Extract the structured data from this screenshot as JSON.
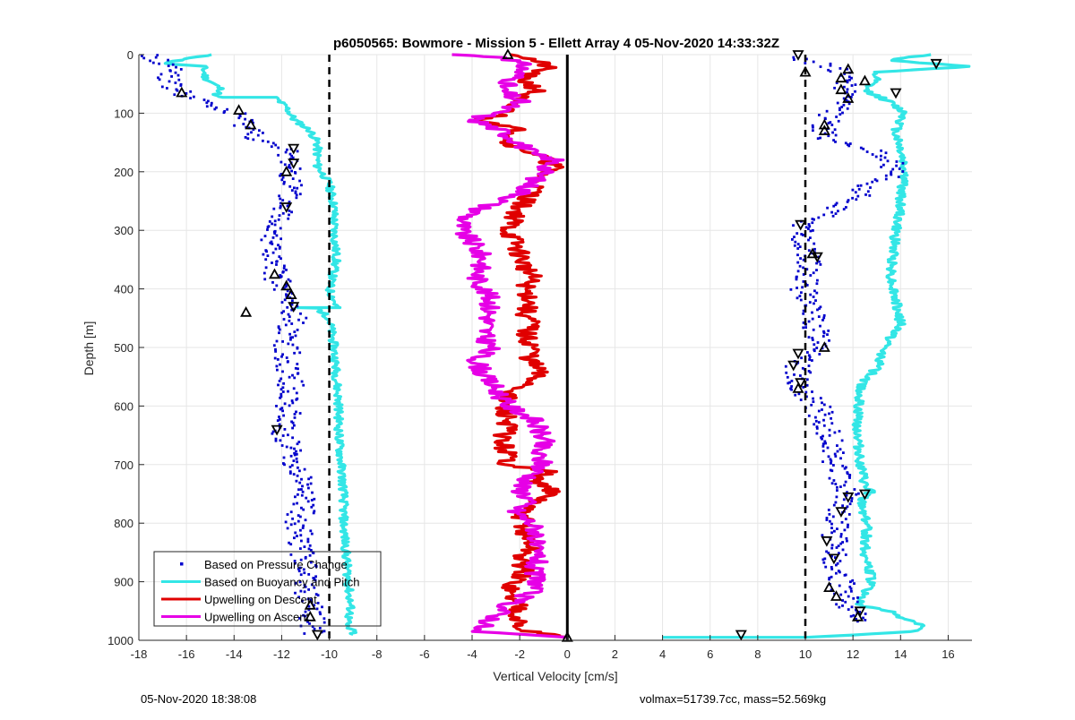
{
  "chart_data": {
    "type": "scatter",
    "title": "p6050565: Bowmore - Mission 5 - Ellett Array 4 05-Nov-2020 14:33:32Z",
    "xlabel": "Vertical Velocity [cm/s]",
    "ylabel": "Depth [m]",
    "xlim": [
      -18,
      17
    ],
    "ylim": [
      0,
      1000
    ],
    "y_reversed": true,
    "grid": true,
    "legend_position": "bottom-left",
    "x_ticks": [
      -18,
      -16,
      -14,
      -12,
      -10,
      -8,
      -6,
      -4,
      -2,
      0,
      2,
      4,
      6,
      8,
      10,
      12,
      14,
      16
    ],
    "y_ticks": [
      0,
      100,
      200,
      300,
      400,
      500,
      600,
      700,
      800,
      900,
      1000
    ],
    "reference_lines": [
      {
        "x": -10,
        "style": "dashed",
        "color": "#000000"
      },
      {
        "x": 10,
        "style": "dashed",
        "color": "#000000"
      },
      {
        "x": 0,
        "style": "solid",
        "color": "#000000"
      }
    ],
    "series": [
      {
        "name": "Based on Pressure Change",
        "style": "dots",
        "color": "#0000cc",
        "descent_profile": [
          [
            -17.6,
            0
          ],
          [
            -16.5,
            25
          ],
          [
            -16.8,
            50
          ],
          [
            -16,
            70
          ],
          [
            -15.2,
            85
          ],
          [
            -14,
            100
          ],
          [
            -13.2,
            130
          ],
          [
            -12.8,
            150
          ],
          [
            -11.8,
            165
          ],
          [
            -11.5,
            200
          ],
          [
            -11.8,
            250
          ],
          [
            -12.2,
            300
          ],
          [
            -12.5,
            350
          ],
          [
            -12,
            400
          ],
          [
            -11.5,
            450
          ],
          [
            -11.8,
            500
          ],
          [
            -11.6,
            550
          ],
          [
            -11.7,
            600
          ],
          [
            -11.9,
            650
          ],
          [
            -11.4,
            700
          ],
          [
            -11,
            750
          ],
          [
            -11.3,
            800
          ],
          [
            -11.1,
            850
          ],
          [
            -11,
            900
          ],
          [
            -10.8,
            950
          ],
          [
            -10.6,
            990
          ]
        ],
        "ascent_profile": [
          [
            9.5,
            5
          ],
          [
            11,
            20
          ],
          [
            12,
            40
          ],
          [
            11.6,
            60
          ],
          [
            11.5,
            80
          ],
          [
            11.2,
            100
          ],
          [
            10.8,
            120
          ],
          [
            10.8,
            140
          ],
          [
            11.5,
            150
          ],
          [
            12.5,
            160
          ],
          [
            13.5,
            175
          ],
          [
            13.8,
            200
          ],
          [
            12.5,
            230
          ],
          [
            11.5,
            260
          ],
          [
            10,
            290
          ],
          [
            9.8,
            320
          ],
          [
            10.2,
            350
          ],
          [
            9.9,
            400
          ],
          [
            10.3,
            450
          ],
          [
            10.5,
            480
          ],
          [
            10.8,
            500
          ],
          [
            9.7,
            530
          ],
          [
            9.8,
            570
          ],
          [
            10.5,
            600
          ],
          [
            11,
            650
          ],
          [
            11.3,
            700
          ],
          [
            11.8,
            750
          ],
          [
            11.3,
            800
          ],
          [
            11.2,
            850
          ],
          [
            11.5,
            900
          ],
          [
            11.8,
            940
          ],
          [
            12.2,
            970
          ]
        ]
      },
      {
        "name": "Based on Buoyancy and Pitch",
        "style": "line",
        "color": "#33e6e6",
        "descent_profile": [
          [
            -15,
            0
          ],
          [
            -17,
            15
          ],
          [
            -15.3,
            20
          ],
          [
            -15.2,
            40
          ],
          [
            -14.5,
            60
          ],
          [
            -14.8,
            70
          ],
          [
            -14.6,
            73
          ],
          [
            -12.3,
            73
          ],
          [
            -11.8,
            90
          ],
          [
            -11.5,
            110
          ],
          [
            -10.8,
            130
          ],
          [
            -10.5,
            150
          ],
          [
            -10.5,
            190
          ],
          [
            -10,
            220
          ],
          [
            -9.8,
            260
          ],
          [
            -9.8,
            300
          ],
          [
            -9.7,
            350
          ],
          [
            -10,
            400
          ],
          [
            -9.7,
            430
          ],
          [
            -9.7,
            432
          ],
          [
            -11.3,
            432
          ],
          [
            -10.5,
            433
          ],
          [
            -10,
            450
          ],
          [
            -9.8,
            500
          ],
          [
            -9.7,
            550
          ],
          [
            -9.6,
            600
          ],
          [
            -9.6,
            650
          ],
          [
            -9.5,
            700
          ],
          [
            -9.4,
            750
          ],
          [
            -9.4,
            800
          ],
          [
            -9.3,
            850
          ],
          [
            -9.2,
            900
          ],
          [
            -9.1,
            950
          ],
          [
            -9.3,
            975
          ],
          [
            -9,
            985
          ],
          [
            -9,
            990
          ]
        ],
        "ascent_profile": [
          [
            15.2,
            0
          ],
          [
            13.5,
            10
          ],
          [
            17,
            20
          ],
          [
            12.8,
            30
          ],
          [
            13,
            40
          ],
          [
            12.5,
            60
          ],
          [
            13.5,
            80
          ],
          [
            14.2,
            100
          ],
          [
            13.8,
            130
          ],
          [
            14,
            160
          ],
          [
            14.2,
            200
          ],
          [
            14,
            240
          ],
          [
            14,
            260
          ],
          [
            13.8,
            300
          ],
          [
            13.7,
            340
          ],
          [
            13.6,
            380
          ],
          [
            13.8,
            420
          ],
          [
            14,
            460
          ],
          [
            13.3,
            500
          ],
          [
            13.1,
            530
          ],
          [
            12.4,
            560
          ],
          [
            12.2,
            600
          ],
          [
            12.2,
            650
          ],
          [
            12.3,
            700
          ],
          [
            12.5,
            740
          ],
          [
            12.8,
            745
          ],
          [
            12.3,
            760
          ],
          [
            12.6,
            800
          ],
          [
            12.5,
            850
          ],
          [
            12.8,
            900
          ],
          [
            12.2,
            940
          ],
          [
            13.5,
            950
          ],
          [
            14,
            960
          ],
          [
            15,
            975
          ],
          [
            14.5,
            985
          ],
          [
            10,
            995
          ],
          [
            7,
            995
          ],
          [
            4,
            995
          ]
        ]
      },
      {
        "name": "Upwelling on Descent",
        "style": "line",
        "color": "#e00000",
        "profile": [
          [
            -2,
            0
          ],
          [
            -0.8,
            20
          ],
          [
            -2,
            40
          ],
          [
            -1.2,
            60
          ],
          [
            -2.5,
            80
          ],
          [
            -2.5,
            100
          ],
          [
            -3.5,
            110
          ],
          [
            -2,
            130
          ],
          [
            -2.5,
            150
          ],
          [
            -1.3,
            170
          ],
          [
            -0.5,
            190
          ],
          [
            -1.2,
            210
          ],
          [
            -1.5,
            240
          ],
          [
            -2,
            260
          ],
          [
            -2.2,
            280
          ],
          [
            -2.5,
            300
          ],
          [
            -2.2,
            320
          ],
          [
            -2,
            340
          ],
          [
            -1.8,
            360
          ],
          [
            -1.5,
            380
          ],
          [
            -1.8,
            400
          ],
          [
            -1.5,
            420
          ],
          [
            -1.8,
            440
          ],
          [
            -1.5,
            460
          ],
          [
            -1.8,
            480
          ],
          [
            -1.4,
            500
          ],
          [
            -1.6,
            520
          ],
          [
            -1.2,
            540
          ],
          [
            -1.5,
            560
          ],
          [
            -2.5,
            580
          ],
          [
            -2.8,
            600
          ],
          [
            -2.5,
            620
          ],
          [
            -2.5,
            640
          ],
          [
            -2.8,
            660
          ],
          [
            -2.5,
            680
          ],
          [
            -2.5,
            700
          ],
          [
            -0.8,
            710
          ],
          [
            -1.5,
            730
          ],
          [
            -0.5,
            740
          ],
          [
            -1.2,
            760
          ],
          [
            -2,
            780
          ],
          [
            -1.8,
            800
          ],
          [
            -1.8,
            820
          ],
          [
            -1.5,
            840
          ],
          [
            -2,
            860
          ],
          [
            -1.8,
            880
          ],
          [
            -2.2,
            900
          ],
          [
            -2.5,
            920
          ],
          [
            -2,
            940
          ],
          [
            -2,
            960
          ],
          [
            -2.2,
            980
          ],
          [
            -0.4,
            992
          ],
          [
            0,
            995
          ]
        ]
      },
      {
        "name": "Upwelling on Ascent",
        "style": "line",
        "color": "#e600e6",
        "profile": [
          [
            -4.8,
            0
          ],
          [
            -2.5,
            5
          ],
          [
            -1.8,
            20
          ],
          [
            -2.2,
            40
          ],
          [
            -2.8,
            60
          ],
          [
            -2,
            80
          ],
          [
            -3,
            100
          ],
          [
            -4,
            110
          ],
          [
            -2.8,
            130
          ],
          [
            -2,
            150
          ],
          [
            -1.5,
            170
          ],
          [
            -0.5,
            180
          ],
          [
            -1,
            200
          ],
          [
            -1.5,
            220
          ],
          [
            -2,
            240
          ],
          [
            -3.5,
            260
          ],
          [
            -4.3,
            280
          ],
          [
            -4.5,
            300
          ],
          [
            -4,
            320
          ],
          [
            -3.5,
            350
          ],
          [
            -3.8,
            380
          ],
          [
            -3.5,
            400
          ],
          [
            -3.2,
            420
          ],
          [
            -3.3,
            450
          ],
          [
            -3.5,
            480
          ],
          [
            -3.2,
            500
          ],
          [
            -3.8,
            520
          ],
          [
            -3.5,
            550
          ],
          [
            -3,
            570
          ],
          [
            -2.5,
            600
          ],
          [
            -1.5,
            620
          ],
          [
            -1.2,
            640
          ],
          [
            -1,
            660
          ],
          [
            -1.3,
            680
          ],
          [
            -1,
            700
          ],
          [
            -1.5,
            720
          ],
          [
            -2,
            740
          ],
          [
            -1.6,
            760
          ],
          [
            -2.2,
            780
          ],
          [
            -1.5,
            800
          ],
          [
            -1.2,
            820
          ],
          [
            -1.5,
            840
          ],
          [
            -1.2,
            860
          ],
          [
            -1.5,
            880
          ],
          [
            -1.2,
            900
          ],
          [
            -1.6,
            920
          ],
          [
            -2.5,
            940
          ],
          [
            -3,
            960
          ],
          [
            -3.5,
            975
          ],
          [
            -4,
            985
          ],
          [
            0,
            995
          ]
        ]
      },
      {
        "name": "Down markers",
        "style": "triangle-down",
        "color": "#000000",
        "points": [
          [
            15.5,
            15
          ],
          [
            9.7,
            0
          ],
          [
            13.8,
            65
          ],
          [
            -11.5,
            160
          ],
          [
            -11.5,
            185
          ],
          [
            -11.8,
            260
          ],
          [
            -11.5,
            430
          ],
          [
            -12.2,
            640
          ],
          [
            11.5,
            780
          ],
          [
            10.9,
            830
          ],
          [
            11.2,
            860
          ],
          [
            12.5,
            750
          ],
          [
            11.8,
            755
          ],
          [
            12.3,
            950
          ],
          [
            -10.5,
            990
          ],
          [
            7.3,
            990
          ],
          [
            9.7,
            510
          ],
          [
            9.5,
            530
          ],
          [
            9.8,
            560
          ],
          [
            9.8,
            290
          ],
          [
            10.5,
            345
          ]
        ]
      },
      {
        "name": "Up markers",
        "style": "triangle-up",
        "color": "#000000",
        "points": [
          [
            -2.5,
            0
          ],
          [
            10,
            30
          ],
          [
            11.8,
            25
          ],
          [
            11.5,
            40
          ],
          [
            12.5,
            45
          ],
          [
            -16.2,
            65
          ],
          [
            -13.8,
            95
          ],
          [
            -13.3,
            120
          ],
          [
            10.8,
            120
          ],
          [
            10.8,
            130
          ],
          [
            -11.8,
            200
          ],
          [
            -12.3,
            375
          ],
          [
            -11.8,
            395
          ],
          [
            -11.6,
            410
          ],
          [
            -13.5,
            440
          ],
          [
            10.3,
            340
          ],
          [
            10.8,
            500
          ],
          [
            11.5,
            60
          ],
          [
            11.8,
            75
          ],
          [
            9.7,
            570
          ],
          [
            -10.8,
            940
          ],
          [
            -10.8,
            960
          ],
          [
            12.2,
            960
          ],
          [
            11.3,
            925
          ],
          [
            11,
            910
          ],
          [
            0,
            995
          ]
        ]
      }
    ]
  },
  "footer": {
    "left": "05-Nov-2020 18:38:08",
    "right": "volmax=51739.7cc, mass=52.569kg"
  }
}
